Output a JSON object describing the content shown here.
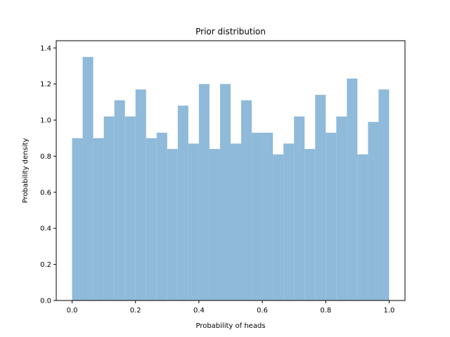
{
  "chart_data": {
    "type": "bar",
    "title": "Prior distribution",
    "xlabel": "Probability of heads",
    "ylabel": "Probability density",
    "xlim": [
      -0.05,
      1.05
    ],
    "ylim": [
      0,
      1.44
    ],
    "grid": false,
    "bar_color": "#8fbad9",
    "xticks": [
      0.0,
      0.2,
      0.4,
      0.6,
      0.8,
      1.0
    ],
    "xtick_labels": [
      "0.0",
      "0.2",
      "0.4",
      "0.6",
      "0.8",
      "1.0"
    ],
    "yticks": [
      0.0,
      0.2,
      0.4,
      0.6,
      0.8,
      1.0,
      1.2,
      1.4
    ],
    "ytick_labels": [
      "0.0",
      "0.2",
      "0.4",
      "0.6",
      "0.8",
      "1.0",
      "1.2",
      "1.4"
    ],
    "bin_edges_start": 0.0,
    "bin_width": 0.0333,
    "values": [
      0.9,
      1.35,
      0.9,
      1.02,
      1.11,
      1.02,
      1.17,
      0.9,
      0.93,
      0.84,
      1.08,
      0.87,
      1.2,
      0.84,
      1.2,
      0.87,
      1.11,
      0.93,
      0.93,
      0.81,
      0.87,
      1.02,
      0.84,
      1.14,
      0.93,
      1.02,
      1.23,
      0.81,
      0.99,
      1.17
    ]
  }
}
